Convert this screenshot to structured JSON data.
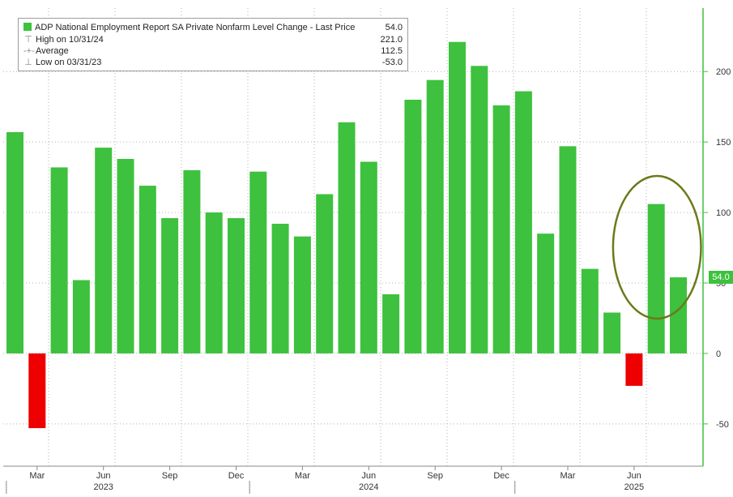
{
  "chart_data": {
    "type": "bar",
    "legend_position": "top-left",
    "grid": true,
    "series": [
      {
        "name": "ADP National Employment Report SA Private Nonfarm Level Change - Last Price",
        "last_value": "54.0",
        "values": [
          157,
          -53,
          132,
          52,
          146,
          138,
          119,
          96,
          130,
          100,
          96,
          129,
          92,
          83,
          113,
          164,
          136,
          42,
          180,
          194,
          221,
          204,
          176,
          186,
          85,
          147,
          60,
          29,
          -23,
          106,
          54
        ]
      }
    ],
    "legend_stats": [
      {
        "label": "High on 10/31/24",
        "value": "221.0"
      },
      {
        "label": "Average",
        "value": "112.5"
      },
      {
        "label": "Low on 03/31/23",
        "value": "-53.0"
      }
    ],
    "y_ticks": [
      -50,
      0,
      50,
      100,
      150,
      200
    ],
    "ylim": [
      -80,
      245
    ],
    "x_month_ticks": [
      {
        "label": "Mar",
        "index": 1
      },
      {
        "label": "Jun",
        "index": 4
      },
      {
        "label": "Sep",
        "index": 7
      },
      {
        "label": "Dec",
        "index": 10
      },
      {
        "label": "Mar",
        "index": 13
      },
      {
        "label": "Jun",
        "index": 16
      },
      {
        "label": "Sep",
        "index": 19
      },
      {
        "label": "Dec",
        "index": 22
      },
      {
        "label": "Mar",
        "index": 25
      },
      {
        "label": "Jun",
        "index": 28
      }
    ],
    "x_year_ticks": [
      {
        "label": "2023",
        "index": 4
      },
      {
        "label": "2024",
        "index": 16
      },
      {
        "label": "2025",
        "index": 28
      }
    ],
    "highlight": {
      "shape": "ellipse",
      "from_index": 28,
      "to_index": 30
    }
  },
  "colors": {
    "positive": "#3ec13e",
    "negative": "#ee0000",
    "axis": "#3ec13e",
    "grid": "#b0b0b0",
    "highlight": "#6b7a1a"
  }
}
